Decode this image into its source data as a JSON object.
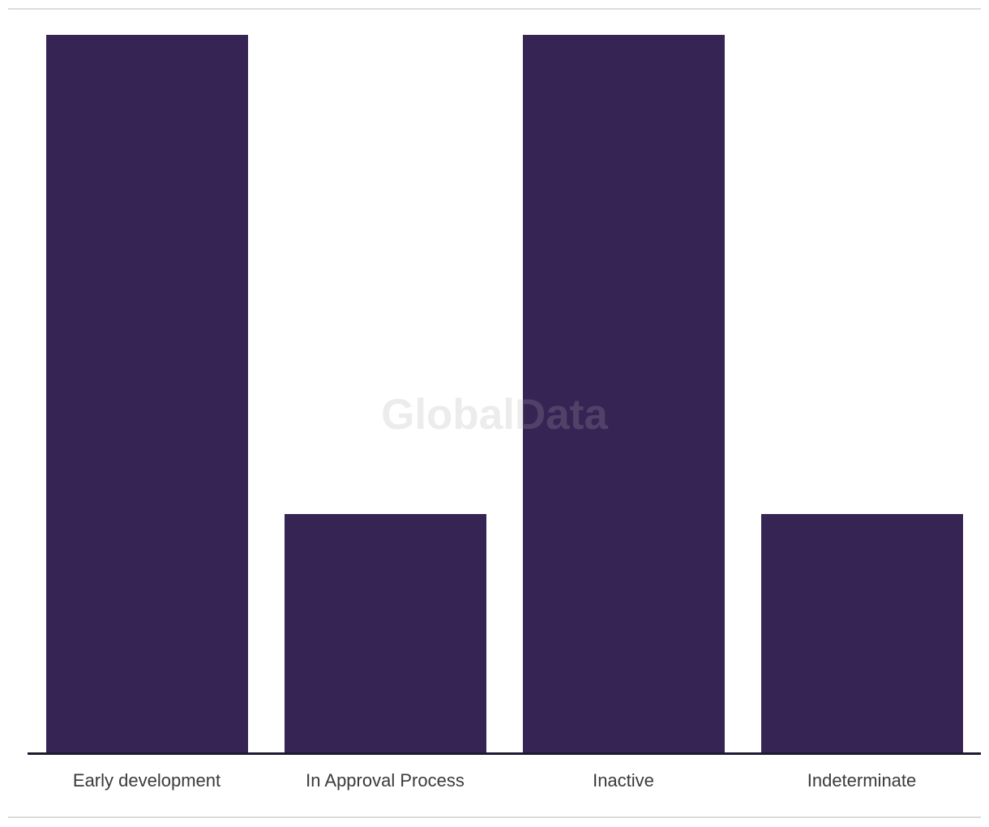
{
  "watermark": {
    "text": "GlobalData"
  },
  "colors": {
    "bar": "#362455",
    "axis_line": "#1b1b30",
    "divider": "#dcdcdc",
    "label_text": "#3a3a3a",
    "watermark_text": "#aaaaaa"
  },
  "chart_data": {
    "type": "bar",
    "categories": [
      "Early development",
      "In Approval Process",
      "Inactive",
      "Indeterminate"
    ],
    "values": [
      3,
      1,
      3,
      1
    ],
    "title": "",
    "xlabel": "",
    "ylabel": "",
    "ylim": [
      0,
      3
    ],
    "grid": false,
    "legend": false,
    "bar_color": "#362455",
    "note": "No y-axis ticks visible; values are relative bar heights estimated from pixels (tall:short = 3:1)"
  }
}
